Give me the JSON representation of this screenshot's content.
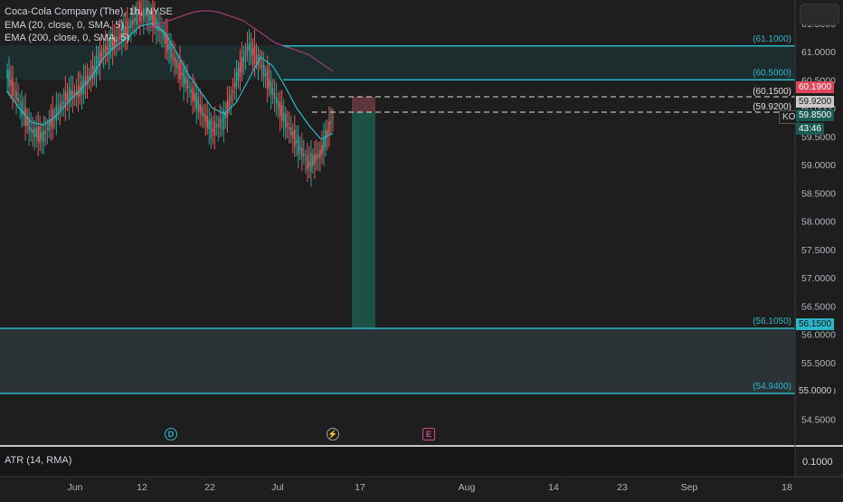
{
  "legend": {
    "symbol": "Coca-Cola Company (The), 1h, NYSE",
    "ema20": "EMA (20, close, 0, SMA, 5)",
    "ema200": "EMA (200, close, 0, SMA, 5)"
  },
  "atr_label": "ATR (14, RMA)",
  "atr_axis_label": "0.1000",
  "ticker": "KO",
  "countdown": "43:46",
  "colors": {
    "background": "#1e1e1e",
    "up": "#26a69a",
    "down": "#ef5350",
    "cyan_line": "#2ab7c9",
    "ema20": "#2ab7c9",
    "ema200": "#9b3d72",
    "price_tag_red": "#e0455a",
    "price_tag_green": "#1a5a52"
  },
  "price_axis_ticks": [
    "61.5000",
    "61.0000",
    "60.5000",
    "60.0000",
    "59.5000",
    "59.0000",
    "58.5000",
    "58.0000",
    "57.5000",
    "57.0000",
    "56.5000",
    "56.0000",
    "55.5000",
    "55.0000",
    "54.5000"
  ],
  "time_axis_ticks": [
    "Jun",
    "12",
    "22",
    "Jul",
    "17",
    "Aug",
    "14",
    "23",
    "Sep",
    "18"
  ],
  "horizontal_levels": [
    {
      "label": "(61.1000)",
      "price": 61.1
    },
    {
      "label": "(60.5000)",
      "price": 60.5
    },
    {
      "label": "(56.1050)",
      "price": 56.105
    },
    {
      "label": "(54.9400)",
      "price": 54.94
    }
  ],
  "dashed_levels": [
    {
      "label": "(60.1500)",
      "price": 60.15
    },
    {
      "label": "(59.9200)",
      "price": 59.92
    }
  ],
  "price_tags": [
    {
      "text": "60.1900",
      "style": "red"
    },
    {
      "text": "59.9200",
      "style": "grey"
    },
    {
      "text": "59.8500",
      "style": "green"
    },
    {
      "text": "56.1500",
      "style": "cyan"
    },
    {
      "text": "55.0000",
      "style": "plain"
    }
  ],
  "events": [
    {
      "kind": "dividend",
      "symbol": "D",
      "icon": "dividend-icon"
    },
    {
      "kind": "split",
      "symbol": "⚡",
      "icon": "lightning-icon"
    },
    {
      "kind": "earnings",
      "symbol": "E",
      "icon": "earnings-icon"
    }
  ],
  "chart_data": {
    "type": "candlestick",
    "title": "Coca-Cola Company (The), 1h, NYSE",
    "ylim": [
      54.0,
      61.8
    ],
    "y_scale": "linear",
    "grid": false,
    "x_range": [
      "Jun",
      "Sep 18"
    ],
    "series": [
      {
        "name": "EMA (20, close, 0, SMA, 5)",
        "values": [
          60.3,
          60.0,
          59.75,
          59.7,
          59.85,
          60.1,
          60.3,
          60.55,
          60.9,
          61.1,
          61.25,
          61.45,
          61.5,
          61.35,
          61.0,
          60.6,
          60.3,
          60.0,
          59.9,
          60.1,
          60.5,
          60.9,
          60.75,
          60.4,
          60.0,
          59.7,
          59.45,
          59.55
        ]
      },
      {
        "name": "EMA (200, close, 0, SMA, 5)",
        "values": [
          61.4,
          61.45,
          61.5,
          61.55,
          61.6,
          61.65,
          61.7,
          61.72,
          61.72,
          61.7,
          61.65,
          61.6,
          61.55,
          61.45,
          61.35,
          61.25,
          61.15,
          61.1,
          61.05,
          61.0,
          60.95,
          60.85,
          60.75,
          60.65
        ]
      },
      {
        "name": "Close",
        "values": [
          60.6,
          60.1,
          59.6,
          59.5,
          59.9,
          60.2,
          60.3,
          60.6,
          61.0,
          61.2,
          61.4,
          61.7,
          61.6,
          61.3,
          60.8,
          60.4,
          60.0,
          59.6,
          59.8,
          60.5,
          61.1,
          60.8,
          60.3,
          59.8,
          59.4,
          59.0,
          59.2,
          59.85
        ]
      }
    ],
    "horizontal_levels": [
      61.1,
      60.5,
      60.15,
      59.92,
      56.105,
      54.94
    ],
    "position_box": {
      "entry": 59.92,
      "stop": 60.15,
      "target": 56.105,
      "from": "Jul 10",
      "to": "Jul 17"
    }
  }
}
